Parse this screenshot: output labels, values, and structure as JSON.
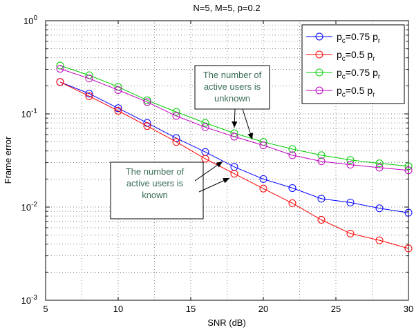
{
  "chart_data": {
    "type": "line",
    "title": "N=5, M=5, p=0.2",
    "xlabel": "SNR (dB)",
    "ylabel": "Frame error",
    "xlim": [
      5,
      30
    ],
    "ylim": [
      0.001,
      1
    ],
    "yscale": "log",
    "grid": true,
    "legend_position": "top-right",
    "x_ticks": [
      "5",
      "10",
      "15",
      "20",
      "25",
      "30"
    ],
    "y_ticks": [
      {
        "base": "10",
        "exp": "0"
      },
      {
        "base": "10",
        "exp": "-1"
      },
      {
        "base": "10",
        "exp": "-2"
      },
      {
        "base": "10",
        "exp": "-3"
      }
    ],
    "x": [
      6,
      8,
      10,
      12,
      14,
      16,
      18,
      20,
      22,
      24,
      26,
      28,
      30
    ],
    "series": [
      {
        "legend": {
          "a": "p",
          "a_sub": "c",
          "b": "=0.75 p",
          "b_sub": "r"
        },
        "color": "#0000ff",
        "values": [
          0.22,
          0.165,
          0.115,
          0.08,
          0.055,
          0.039,
          0.027,
          0.02,
          0.016,
          0.0123,
          0.0112,
          0.0097,
          0.0087
        ]
      },
      {
        "legend": {
          "a": "p",
          "a_sub": "c",
          "b": "=0.5 p",
          "b_sub": "r"
        },
        "color": "#ff0000",
        "values": [
          0.22,
          0.155,
          0.108,
          0.074,
          0.05,
          0.033,
          0.0228,
          0.0158,
          0.011,
          0.0073,
          0.0052,
          0.0044,
          0.0036
        ]
      },
      {
        "legend": {
          "a": "p",
          "a_sub": "c",
          "b": "=0.75 p",
          "b_sub": "r"
        },
        "color": "#00cc00",
        "values": [
          0.33,
          0.26,
          0.195,
          0.14,
          0.105,
          0.08,
          0.062,
          0.05,
          0.042,
          0.036,
          0.032,
          0.0295,
          0.0275
        ]
      },
      {
        "legend": {
          "a": "p",
          "a_sub": "c",
          "b": "=0.5 p",
          "b_sub": "r"
        },
        "color": "#bf00bf",
        "values": [
          0.305,
          0.24,
          0.18,
          0.134,
          0.095,
          0.072,
          0.057,
          0.046,
          0.036,
          0.031,
          0.0285,
          0.0265,
          0.0248
        ]
      }
    ],
    "annotations": [
      {
        "lines": [
          "The number of",
          "active users is",
          "unknown"
        ]
      },
      {
        "lines": [
          "The number of",
          "active users is",
          "known"
        ]
      }
    ]
  }
}
